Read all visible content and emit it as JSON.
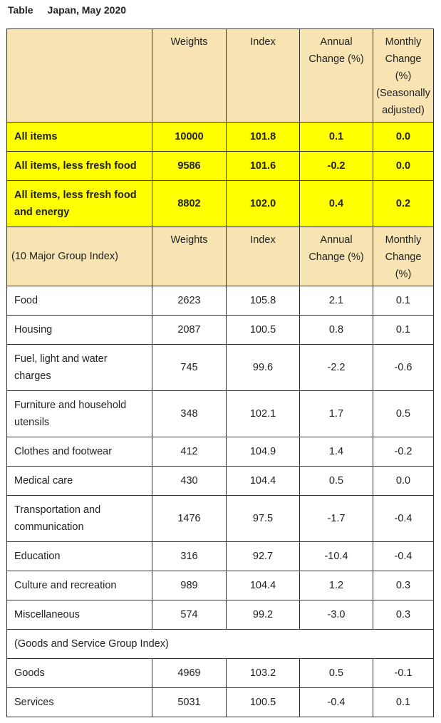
{
  "title": {
    "label": "Table",
    "text": "Japan, May 2020"
  },
  "header": {
    "col1": "",
    "col2": "Weights",
    "col3": "Index",
    "col4_l1": "Annual",
    "col4_l2": "Change (%)",
    "col5_l1": "Monthly",
    "col5_l2": "Change",
    "col5_l3": "(%)",
    "col5_l4": "(Seasonally",
    "col5_l5": "adjusted)"
  },
  "highlight_rows": [
    {
      "label": "All items",
      "weights": "10000",
      "index": "101.8",
      "annual": "0.1",
      "monthly": "0.0"
    },
    {
      "label": "All items, less fresh food",
      "weights": "9586",
      "index": "101.6",
      "annual": "-0.2",
      "monthly": "0.0"
    },
    {
      "label_l1": "All items, less fresh food",
      "label_l2": "and energy",
      "weights": "8802",
      "index": "102.0",
      "annual": "0.4",
      "monthly": "0.2"
    }
  ],
  "group_header": {
    "label": "(10 Major Group Index)",
    "col2": "Weights",
    "col3": "Index",
    "col4_l1": "Annual",
    "col4_l2": "Change (%)",
    "col5_l1": "Monthly",
    "col5_l2": "Change",
    "col5_l3": "(%)"
  },
  "major_groups": [
    {
      "label": "Food",
      "weights": "2623",
      "index": "105.8",
      "annual": "2.1",
      "monthly": "0.1"
    },
    {
      "label": "Housing",
      "weights": "2087",
      "index": "100.5",
      "annual": "0.8",
      "monthly": "0.1"
    },
    {
      "label_l1": "Fuel, light and water",
      "label_l2": "charges",
      "weights": "745",
      "index": "99.6",
      "annual": "-2.2",
      "monthly": "-0.6"
    },
    {
      "label_l1": "Furniture and household",
      "label_l2": "utensils",
      "weights": "348",
      "index": "102.1",
      "annual": "1.7",
      "monthly": "0.5"
    },
    {
      "label": "Clothes and footwear",
      "weights": "412",
      "index": "104.9",
      "annual": "1.4",
      "monthly": "-0.2"
    },
    {
      "label": "Medical care",
      "weights": "430",
      "index": "104.4",
      "annual": "0.5",
      "monthly": "0.0"
    },
    {
      "label_l1": "Transportation and",
      "label_l2": "communication",
      "weights": "1476",
      "index": "97.5",
      "annual": "-1.7",
      "monthly": "-0.4"
    },
    {
      "label": "Education",
      "weights": "316",
      "index": "92.7",
      "annual": "-10.4",
      "monthly": "-0.4"
    },
    {
      "label": "Culture and recreation",
      "weights": "989",
      "index": "104.4",
      "annual": "1.2",
      "monthly": "0.3"
    },
    {
      "label": "Miscellaneous",
      "weights": "574",
      "index": "99.2",
      "annual": "-3.0",
      "monthly": "0.3"
    }
  ],
  "goods_services_header": "(Goods and Service Group Index)",
  "goods_services": [
    {
      "label": "Goods",
      "weights": "4969",
      "index": "103.2",
      "annual": "0.5",
      "monthly": "-0.1"
    },
    {
      "label": "Services",
      "weights": "5031",
      "index": "100.5",
      "annual": "-0.4",
      "monthly": "0.1"
    }
  ]
}
